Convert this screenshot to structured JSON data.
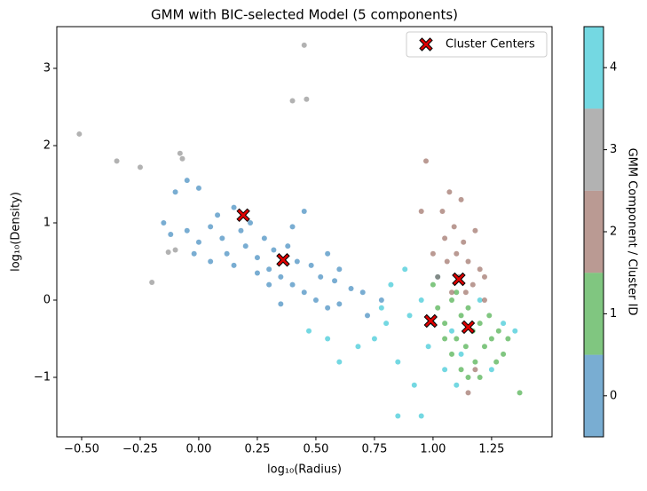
{
  "chart_data": {
    "type": "scatter",
    "title": "GMM with BIC-selected Model (5 components)",
    "x_label": "log₁₀(Radius)",
    "y_label": "log₁₀(Density)",
    "xlim": [
      -0.606,
      1.508
    ],
    "ylim": [
      -1.77,
      3.54
    ],
    "xticks": [
      {
        "value": -0.5,
        "label": "−0.50"
      },
      {
        "value": -0.25,
        "label": "−0.25"
      },
      {
        "value": 0,
        "label": "0.00"
      },
      0.25,
      {
        "value": 0.5,
        "label": "0.50"
      },
      0.75,
      {
        "value": 1,
        "label": "1.00"
      },
      1.25
    ],
    "yticks": [
      {
        "value": -1,
        "label": "−1"
      },
      0,
      1,
      2,
      3
    ],
    "legend": "upper right",
    "series": [
      {
        "color": "#1f77b4",
        "x": [
          -0.05,
          -0.1,
          0.0,
          -0.15,
          -0.12,
          -0.05,
          0.0,
          0.05,
          0.08,
          0.1,
          0.12,
          0.15,
          0.18,
          0.2,
          0.22,
          0.25,
          0.28,
          0.3,
          0.32,
          0.35,
          0.38,
          0.4,
          0.42,
          0.45,
          0.48,
          0.5,
          0.52,
          0.55,
          0.58,
          0.6,
          0.65,
          0.7,
          0.72,
          0.78,
          0.45,
          0.4,
          0.05,
          -0.02,
          0.3,
          0.55,
          0.25,
          0.15,
          0.6,
          0.35
        ],
        "y": [
          1.55,
          1.4,
          1.45,
          1.0,
          0.85,
          0.9,
          0.75,
          0.95,
          1.1,
          0.8,
          0.6,
          1.2,
          0.9,
          0.7,
          1.0,
          0.55,
          0.8,
          0.4,
          0.65,
          0.3,
          0.7,
          0.2,
          0.5,
          0.1,
          0.45,
          0.0,
          0.3,
          -0.1,
          0.25,
          -0.05,
          0.15,
          0.1,
          -0.2,
          0.0,
          1.15,
          0.95,
          0.5,
          0.6,
          0.2,
          0.6,
          0.35,
          0.45,
          0.4,
          -0.05
        ]
      },
      {
        "color": "#17becf",
        "x": [
          0.75,
          0.8,
          0.82,
          0.85,
          0.88,
          0.9,
          0.92,
          0.95,
          0.98,
          1.0,
          1.02,
          1.05,
          1.08,
          1.1,
          1.12,
          1.2,
          1.25,
          1.3,
          1.35,
          0.85,
          0.95,
          0.78,
          0.68,
          0.6,
          0.55,
          0.47
        ],
        "y": [
          -0.5,
          -0.3,
          0.2,
          -0.8,
          0.4,
          -0.2,
          -1.1,
          0.0,
          -0.6,
          -0.3,
          0.3,
          -0.9,
          -0.4,
          -1.1,
          -0.7,
          0.0,
          -0.9,
          -0.3,
          -0.4,
          -1.5,
          -1.5,
          -0.1,
          -0.6,
          -0.8,
          -0.5,
          -0.4
        ]
      },
      {
        "color": "#2ca02c",
        "x": [
          1.0,
          1.02,
          1.05,
          1.08,
          1.1,
          1.12,
          1.14,
          1.15,
          1.17,
          1.18,
          1.2,
          1.22,
          1.24,
          1.25,
          1.27,
          1.28,
          1.3,
          1.32,
          1.37,
          1.08,
          1.12,
          1.05,
          1.15,
          1.2,
          1.1
        ],
        "y": [
          0.2,
          -0.1,
          -0.3,
          0.0,
          -0.5,
          -0.2,
          -0.6,
          -0.1,
          -0.4,
          -0.8,
          -0.3,
          -0.6,
          -0.2,
          -0.5,
          -0.8,
          -0.4,
          -0.7,
          -0.5,
          -1.2,
          -0.7,
          -0.9,
          -0.5,
          -1.0,
          -1.0,
          0.1
        ]
      },
      {
        "color": "#8c564b",
        "x": [
          1.0,
          1.02,
          1.04,
          1.05,
          1.06,
          1.07,
          1.08,
          1.09,
          1.1,
          1.11,
          1.12,
          1.13,
          1.14,
          1.15,
          1.17,
          1.18,
          1.2,
          1.22,
          0.97,
          0.95,
          1.15,
          1.18,
          1.22
        ],
        "y": [
          0.6,
          0.3,
          1.15,
          0.8,
          0.5,
          1.4,
          0.1,
          0.95,
          0.6,
          0.3,
          1.3,
          0.75,
          0.1,
          0.5,
          0.2,
          0.9,
          0.4,
          0.3,
          1.8,
          1.15,
          -1.2,
          -0.9,
          0.0
        ]
      },
      {
        "color": "#7f7f7f",
        "x": [
          -0.51,
          -0.35,
          -0.25,
          -0.08,
          -0.07,
          -0.2,
          -0.13,
          -0.1,
          0.45,
          0.4,
          0.46
        ],
        "y": [
          2.15,
          1.8,
          1.72,
          1.9,
          1.83,
          0.23,
          0.62,
          0.65,
          3.3,
          2.58,
          2.6
        ]
      }
    ],
    "centers": {
      "name": "Cluster Centers",
      "color": "#e00000",
      "x": [
        0.19,
        0.36,
        0.99,
        1.11,
        1.15
      ],
      "y": [
        1.1,
        0.52,
        -0.27,
        0.27,
        -0.35
      ]
    },
    "colorbar": {
      "label": "GMM Component / Cluster ID",
      "lim": [
        -0.5,
        4.5
      ],
      "ticks": [
        0,
        1,
        2,
        3,
        4
      ],
      "colors": [
        "#1f77b4",
        "#2ca02c",
        "#8c564b",
        "#7f7f7f",
        "#17becf"
      ]
    }
  }
}
